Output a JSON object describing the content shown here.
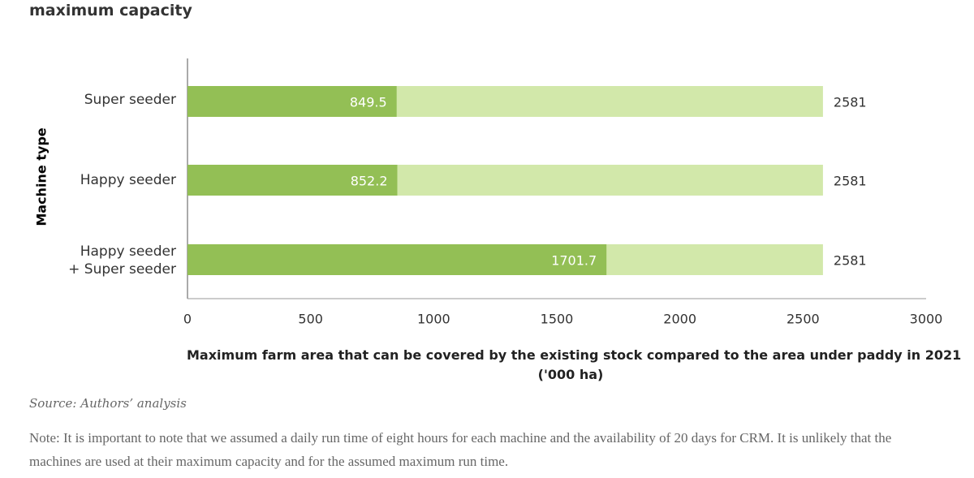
{
  "chart_data": {
    "type": "bar",
    "orientation": "horizontal",
    "overlap": true,
    "title": "maximum capacity",
    "ylabel": "Machine type",
    "xlabel": [
      "Maximum farm area that can be covered by the existing stock compared to the area under paddy in 2021",
      "('000 ha)"
    ],
    "categories": [
      "Super seeder",
      "Happy seeder",
      "Happy seeder + Super seeder"
    ],
    "series": [
      {
        "color": "#d2e8aa",
        "values": [
          2581,
          2581,
          2581
        ],
        "label_position": "outside"
      },
      {
        "color": "#93bf55",
        "values": [
          849.5,
          852.2,
          1701.7
        ],
        "label_position": "inside"
      }
    ],
    "xlim": [
      0,
      3000
    ],
    "xticks": [
      0,
      500,
      1000,
      1500,
      2000,
      2500,
      3000
    ],
    "source": "Source: Authors’ analysis",
    "note": "Note: It is important to note that we assumed a daily run time of eight hours for each machine and the availability of 20 days for CRM. It is unlikely that the machines are used at their maximum capacity and for the assumed maximum run time."
  }
}
